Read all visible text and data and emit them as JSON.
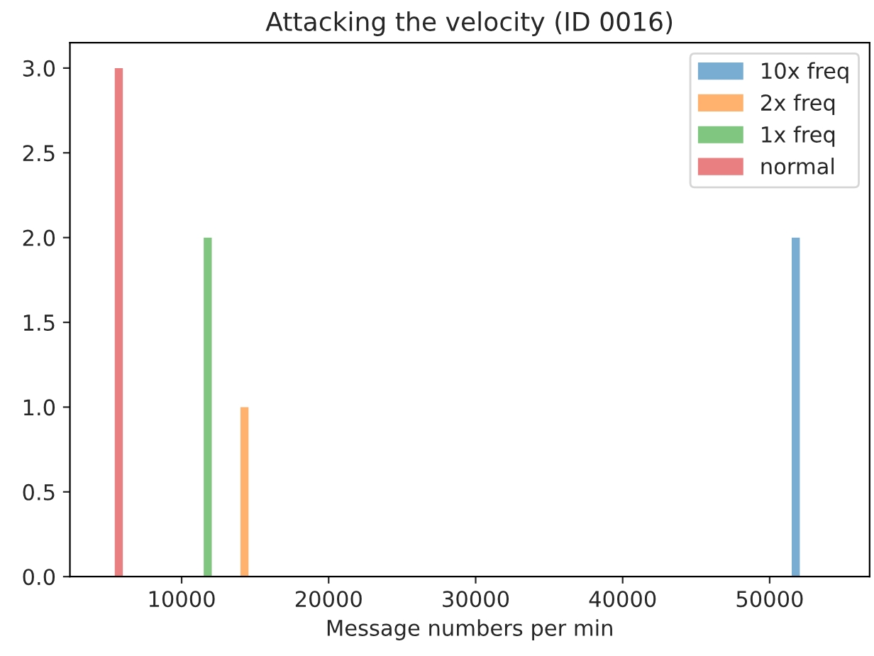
{
  "chart_data": {
    "type": "histogram",
    "title": "Attacking the velocity (ID 0016)",
    "xlabel": "Message numbers per min",
    "bins": [
      5450,
      6000,
      11500,
      12050,
      14000,
      14550,
      51500,
      52050
    ],
    "series": [
      {
        "name": "10x freq",
        "color": "#79add2",
        "values": [
          null,
          null,
          null,
          null,
          null,
          null,
          2
        ]
      },
      {
        "name": "2x freq",
        "color": "#ffb26e",
        "values": [
          null,
          null,
          null,
          null,
          1,
          null,
          null
        ]
      },
      {
        "name": "1x freq",
        "color": "#80c680",
        "values": [
          null,
          null,
          2,
          null,
          null,
          null,
          null
        ]
      },
      {
        "name": "normal",
        "color": "#e97f80",
        "values": [
          3,
          null,
          null,
          null,
          null,
          null,
          null
        ]
      }
    ],
    "xlim": [
      2400,
      56800
    ],
    "xticks": [
      10000,
      20000,
      30000,
      40000,
      50000
    ],
    "ylim": [
      0,
      3.15
    ],
    "yticks": [
      {
        "value": 0,
        "label": "0.0"
      },
      {
        "value": 0.5,
        "label": "0.5"
      },
      {
        "value": 1,
        "label": "1.0"
      },
      {
        "value": 1.5,
        "label": "1.5"
      },
      {
        "value": 2,
        "label": "2.0"
      },
      {
        "value": 2.5,
        "label": "2.5"
      },
      {
        "value": 3,
        "label": "3.0"
      }
    ],
    "grid": false,
    "legend": "top right"
  }
}
